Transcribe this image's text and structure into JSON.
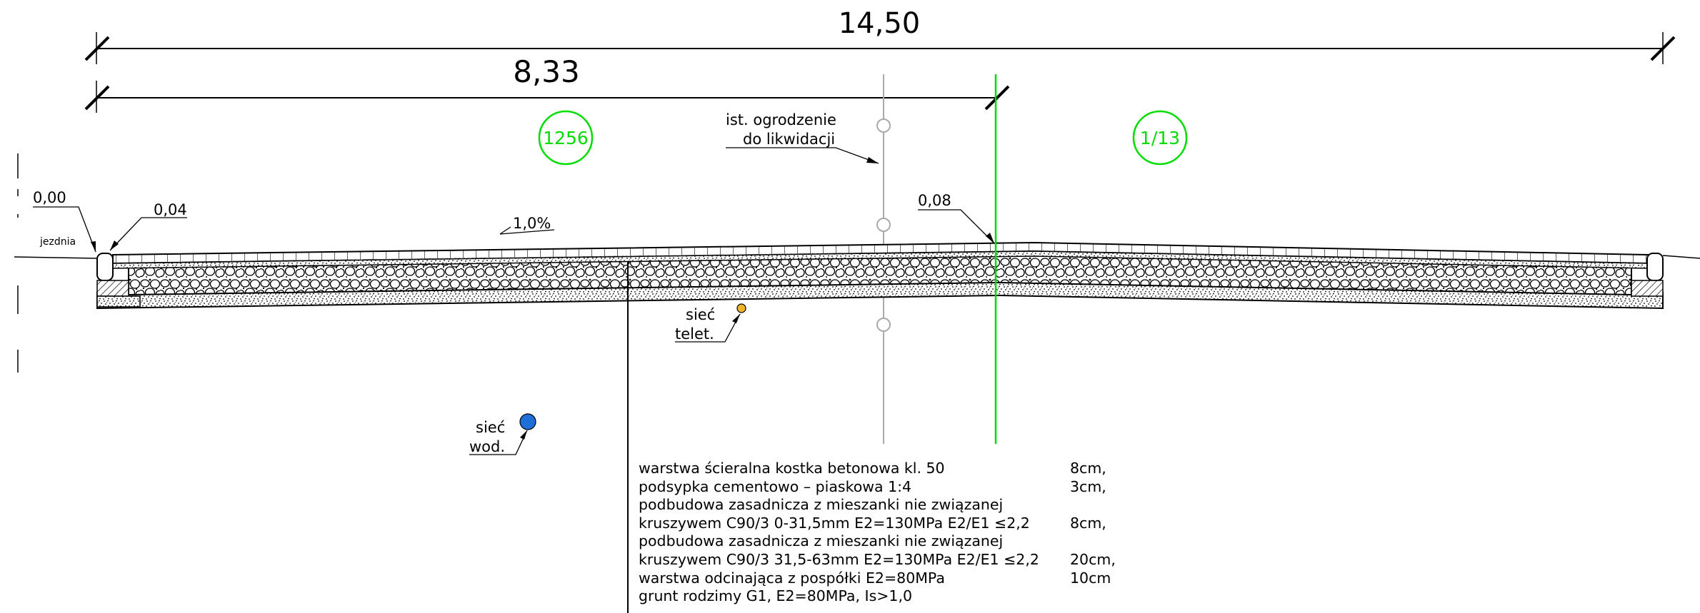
{
  "dimensions": {
    "total_width": "14,50",
    "partial_width": "8,33"
  },
  "parcels": [
    {
      "id": "1256",
      "color": "#00dd00"
    },
    {
      "id": "1/13",
      "color": "#00dd00"
    }
  ],
  "annotations": {
    "fence_line1": "ist. ogrodzenie",
    "fence_line2": "do likwidacji",
    "level_left": "0,00",
    "level_kerb": "0,04",
    "level_right": "0,08",
    "road_label": "jezdnia",
    "slope": "1,0%",
    "telecom_line1": "sieć",
    "telecom_line2": "telet.",
    "water_line1": "sieć",
    "water_line2": "wod."
  },
  "utility_colors": {
    "telecom": "#f0b429",
    "water": "#1f6fd8",
    "parcel_boundary": "#00dd00",
    "fence": "#aaaaaa"
  },
  "layers": [
    {
      "text": "warstwa ścieralna kostka betonowa kl. 50",
      "thickness": "8cm,"
    },
    {
      "text": "podsypka cementowo – piaskowa 1:4",
      "thickness": "3cm,"
    },
    {
      "text": "podbudowa zasadnicza z mieszanki nie związanej",
      "thickness": ""
    },
    {
      "text": "kruszywem C90/3 0-31,5mm E2=130MPa E2/E1 ≤2,2",
      "thickness": "8cm,"
    },
    {
      "text": "podbudowa zasadnicza z mieszanki nie związanej",
      "thickness": ""
    },
    {
      "text": "kruszywem C90/3 31,5-63mm E2=130MPa E2/E1 ≤2,2",
      "thickness": "20cm,"
    },
    {
      "text": "warstwa odcinająca z pospółki E2=80MPa",
      "thickness": "10cm"
    },
    {
      "text": "grunt rodzimy G1, E2=80MPa, Is>1,0",
      "thickness": ""
    }
  ]
}
